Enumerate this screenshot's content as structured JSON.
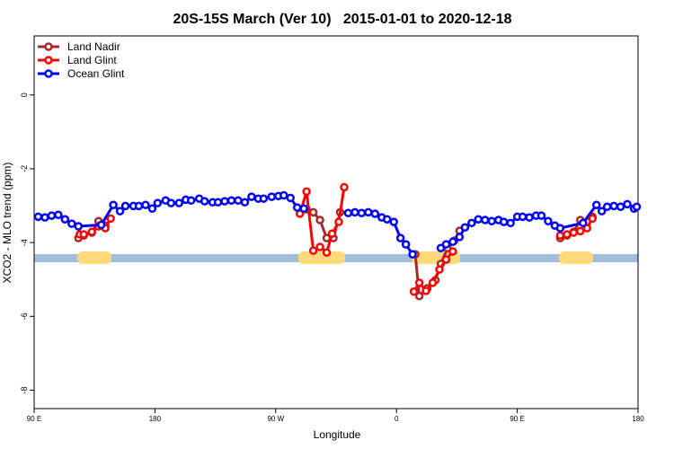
{
  "chart_data": {
    "type": "line",
    "title": "20S-15S March (Ver 10)   2015-01-01 to 2020-12-18",
    "x_label": "Longitude",
    "y_label": "XCO2 - MLO trend (ppm)",
    "xlim": [
      90,
      540
    ],
    "xticks": [
      {
        "value": 90,
        "label": "90 E"
      },
      180,
      {
        "value": 270,
        "label": "90 W"
      },
      {
        "value": 360,
        "label": "0"
      },
      {
        "value": 450,
        "label": "90 E"
      },
      {
        "value": 540,
        "label": "180"
      }
    ],
    "ylim": [
      -8.5,
      1.6
    ],
    "yticks": [
      0,
      -2,
      -4,
      -6,
      -8
    ],
    "legend": "top-left",
    "series": [
      {
        "name": "Land Nadir",
        "color": "#a52a2a",
        "x": [
          123,
          127,
          133,
          138,
          143,
          218,
          293,
          298,
          303,
          308,
          313,
          318,
          346,
          374,
          377,
          383,
          389,
          393,
          398,
          403,
          407,
          445,
          482,
          487,
          492,
          497,
          502,
          506
        ],
        "values": [
          -3.88,
          -3.81,
          -3.73,
          -3.42,
          -3.54,
          null,
          -3.1,
          -3.18,
          -3.39,
          -3.88,
          -3.88,
          -3.18,
          null,
          -4.32,
          -5.45,
          -5.24,
          -5.02,
          -4.58,
          -4.15,
          -3.95,
          -3.68,
          null,
          -3.88,
          -3.81,
          -3.71,
          -3.39,
          -3.44,
          -3.3
        ]
      },
      {
        "name": "Land Glint",
        "color": "#ff0000",
        "x": [
          124,
          127,
          133,
          138,
          143,
          147,
          218,
          288,
          293,
          298,
          303,
          308,
          312,
          317,
          321,
          347,
          373,
          377,
          382,
          387,
          392,
          397,
          402,
          442,
          482,
          487,
          492,
          497,
          502,
          506
        ],
        "values": [
          -3.78,
          -3.78,
          -3.71,
          -3.56,
          -3.61,
          -3.35,
          null,
          -3.22,
          -2.62,
          -4.22,
          -4.12,
          -4.27,
          -3.76,
          -3.44,
          -2.5,
          null,
          -5.33,
          -5.09,
          -5.31,
          -5.09,
          -4.73,
          -4.46,
          -4.24,
          null,
          -3.81,
          -3.78,
          -3.73,
          -3.69,
          -3.61,
          -3.35
        ]
      },
      {
        "name": "Ocean Glint",
        "color": "#0000ff",
        "x": [
          93,
          98,
          103,
          108,
          113,
          118,
          123,
          140,
          149,
          154,
          158,
          164,
          168,
          173,
          178,
          182,
          188,
          192,
          198,
          203,
          207,
          213,
          217,
          223,
          227,
          232,
          237,
          242,
          247,
          252,
          257,
          261,
          267,
          272,
          276,
          281,
          286,
          291,
          307,
          324,
          329,
          334,
          339,
          344,
          349,
          353,
          358,
          363,
          367,
          372,
          382,
          393,
          397,
          402,
          407,
          411,
          416,
          421,
          426,
          431,
          436,
          440,
          445,
          450,
          454,
          459,
          464,
          468,
          473,
          478,
          482,
          499,
          509,
          513,
          517,
          522,
          527,
          532,
          537,
          539
        ],
        "values": [
          -3.3,
          -3.32,
          -3.27,
          -3.25,
          -3.37,
          -3.49,
          -3.56,
          -3.52,
          -2.98,
          -3.15,
          -3.01,
          -3.01,
          -3.01,
          -2.98,
          -3.08,
          -2.93,
          -2.86,
          -2.93,
          -2.93,
          -2.84,
          -2.86,
          -2.81,
          -2.88,
          -2.91,
          -2.91,
          -2.88,
          -2.86,
          -2.86,
          -2.91,
          -2.76,
          -2.81,
          -2.81,
          -2.76,
          -2.74,
          -2.72,
          -2.79,
          -3.05,
          -3.08,
          null,
          -3.2,
          -3.18,
          -3.2,
          -3.18,
          -3.22,
          -3.32,
          -3.37,
          -3.44,
          -3.88,
          -4.05,
          -4.32,
          null,
          -4.15,
          -4.05,
          -3.98,
          -3.85,
          -3.59,
          -3.47,
          -3.37,
          -3.39,
          -3.42,
          -3.39,
          -3.44,
          -3.47,
          -3.3,
          -3.3,
          -3.32,
          -3.27,
          -3.27,
          -3.42,
          -3.54,
          -3.61,
          -3.47,
          -2.98,
          -3.15,
          -3.03,
          -3.01,
          -3.03,
          -2.96,
          -3.08,
          -3.03
        ]
      }
    ]
  }
}
